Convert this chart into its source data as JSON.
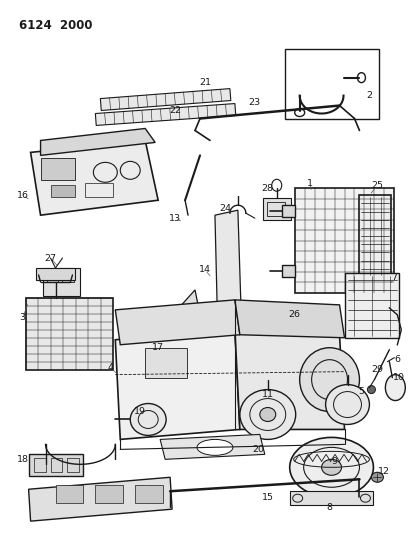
{
  "title": "6124  2000",
  "bg": "#ffffff",
  "lc": "#1a1a1a",
  "tc": "#1a1a1a",
  "fw": 4.08,
  "fh": 5.33,
  "dpi": 100
}
